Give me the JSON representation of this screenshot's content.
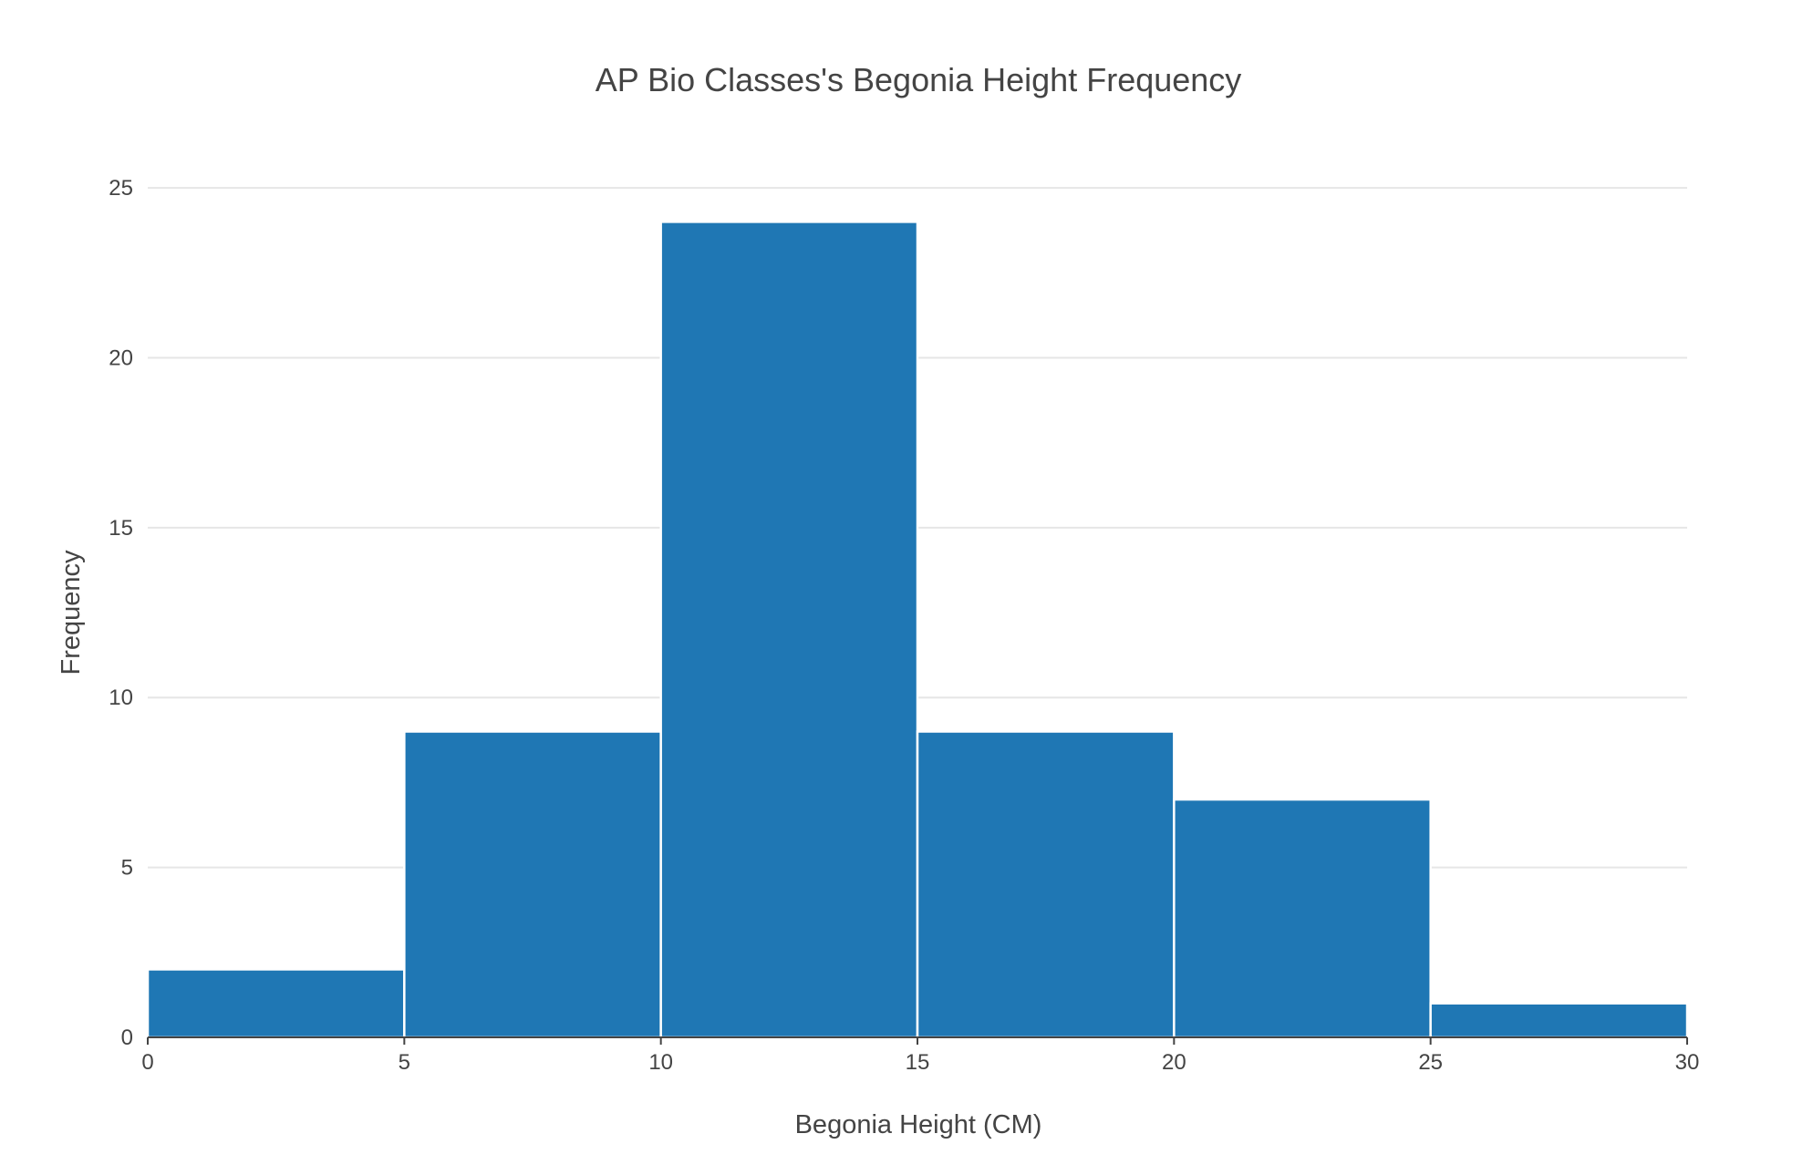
{
  "chart_data": {
    "type": "bar",
    "title": "AP Bio Classes's Begonia Height Frequency",
    "xlabel": "Begonia Height (CM)",
    "ylabel": "Frequency",
    "bins": [
      {
        "start": 0,
        "end": 5,
        "value": 2
      },
      {
        "start": 5,
        "end": 10,
        "value": 9
      },
      {
        "start": 10,
        "end": 15,
        "value": 24
      },
      {
        "start": 15,
        "end": 20,
        "value": 9
      },
      {
        "start": 20,
        "end": 25,
        "value": 7
      },
      {
        "start": 25,
        "end": 30,
        "value": 1
      }
    ],
    "xlim": [
      0,
      30
    ],
    "ylim": [
      0,
      25.7
    ],
    "xticks": [
      "0",
      "5",
      "10",
      "15",
      "20",
      "25",
      "30"
    ],
    "yticks": [
      "0",
      "5",
      "10",
      "15",
      "20",
      "25"
    ],
    "grid": true,
    "legend": "none",
    "bar_color": "#1f77b4"
  }
}
